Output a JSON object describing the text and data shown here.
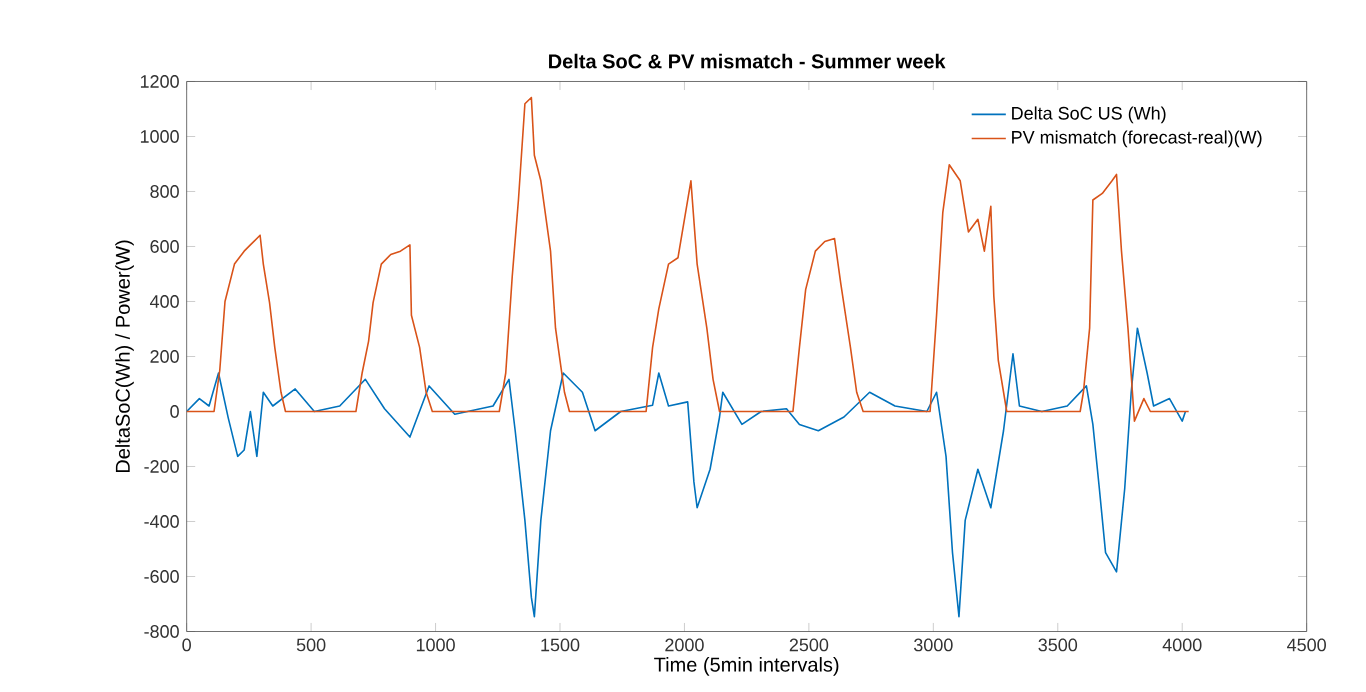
{
  "chart_data": {
    "type": "line",
    "title": "Delta SoC & PV mismatch - Summer week",
    "xlabel": "Time (5min intervals)",
    "ylabel": "DeltaSoC(Wh) / Power(W)",
    "xlim": [
      0,
      4500
    ],
    "xticks": [
      0,
      500,
      1000,
      1500,
      2000,
      2500,
      3000,
      3500,
      4000,
      4500
    ],
    "ylim": [
      -800,
      1200
    ],
    "yticks": [
      -800,
      -600,
      -400,
      -200,
      0,
      200,
      400,
      600,
      800,
      1000,
      1200
    ],
    "grid": false,
    "legend": "top right",
    "marker": "none",
    "line_style": "solid",
    "series": [
      {
        "name": "Delta SoC US (Wh)",
        "color": "#0072bd",
        "x": [
          0,
          51,
          90,
          128,
          167,
          205,
          231,
          256,
          282,
          308,
          346,
          436,
          513,
          615,
          718,
          795,
          897,
          974,
          1077,
          1231,
          1295,
          1320,
          1359,
          1385,
          1397,
          1423,
          1462,
          1513,
          1590,
          1641,
          1744,
          1872,
          1897,
          1936,
          2013,
          2026,
          2038,
          2051,
          2103,
          2141,
          2154,
          2231,
          2308,
          2410,
          2462,
          2538,
          2641,
          2744,
          2846,
          2974,
          3013,
          3051,
          3077,
          3103,
          3128,
          3179,
          3231,
          3282,
          3320,
          3346,
          3436,
          3538,
          3615,
          3641,
          3667,
          3692,
          3736,
          3769,
          3795,
          3820,
          3859,
          3885,
          3949,
          4000,
          4013
        ],
        "values": [
          0,
          47,
          20,
          140,
          -23,
          -163,
          -140,
          0,
          -163,
          70,
          20,
          82,
          0,
          20,
          117,
          10,
          -93,
          93,
          -10,
          20,
          117,
          -70,
          -396,
          -676,
          -746,
          -396,
          -70,
          140,
          70,
          -70,
          0,
          23,
          140,
          20,
          35,
          -117,
          -256,
          -350,
          -210,
          -20,
          70,
          -47,
          0,
          10,
          -47,
          -70,
          -20,
          70,
          20,
          0,
          70,
          -163,
          -513,
          -746,
          -396,
          -210,
          -350,
          -70,
          210,
          20,
          0,
          20,
          93,
          -47,
          -280,
          -513,
          -583,
          -280,
          70,
          303,
          140,
          20,
          47,
          -35,
          0
        ]
      },
      {
        "name": "PV mismatch (forecast-real)(W)",
        "color": "#d95319",
        "x": [
          0,
          110,
          133,
          154,
          192,
          231,
          256,
          295,
          308,
          333,
          354,
          379,
          397,
          680,
          705,
          731,
          749,
          782,
          820,
          859,
          897,
          903,
          936,
          962,
          987,
          1256,
          1282,
          1308,
          1333,
          1359,
          1385,
          1397,
          1423,
          1462,
          1482,
          1500,
          1518,
          1538,
          1846,
          1872,
          1897,
          1936,
          1974,
          2013,
          2026,
          2051,
          2090,
          2115,
          2141,
          2436,
          2462,
          2487,
          2526,
          2564,
          2603,
          2628,
          2667,
          2692,
          2718,
          2987,
          3013,
          3038,
          3064,
          3108,
          3141,
          3179,
          3205,
          3231,
          3243,
          3261,
          3295,
          3590,
          3603,
          3628,
          3641,
          3679,
          3718,
          3736,
          3756,
          3782,
          3808,
          3846,
          3872,
          4026
        ],
        "values": [
          0,
          0,
          150,
          400,
          536,
          583,
          606,
          641,
          536,
          396,
          233,
          70,
          0,
          0,
          140,
          256,
          396,
          536,
          571,
          583,
          606,
          350,
          233,
          70,
          0,
          0,
          140,
          490,
          769,
          1119,
          1142,
          932,
          839,
          583,
          303,
          186,
          70,
          0,
          0,
          233,
          373,
          536,
          559,
          769,
          839,
          536,
          303,
          117,
          0,
          0,
          233,
          443,
          583,
          618,
          629,
          466,
          233,
          70,
          0,
          0,
          350,
          723,
          897,
          839,
          653,
          699,
          583,
          746,
          420,
          186,
          0,
          0,
          70,
          303,
          769,
          793,
          839,
          862,
          583,
          303,
          -35,
          47,
          0,
          0
        ]
      }
    ]
  }
}
